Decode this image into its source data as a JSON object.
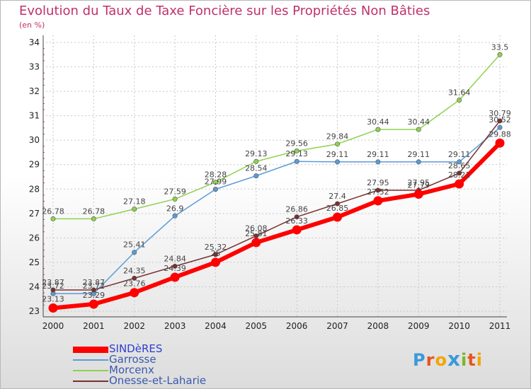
{
  "title": "Evolution du Taux de Taxe Foncière sur les Propriétés Non Bâties",
  "unit_label": "(en %)",
  "logo": {
    "text": "Proxiti",
    "colors": [
      "#3a9ad9",
      "#e8541e",
      "#f2a600",
      "#3a9ad9",
      "#7ab829",
      "#e8541e",
      "#f2a600"
    ]
  },
  "chart_data": {
    "type": "line",
    "categories": [
      "2000",
      "2001",
      "2002",
      "2003",
      "2004",
      "2005",
      "2006",
      "2007",
      "2008",
      "2009",
      "2010",
      "2011"
    ],
    "ylim": [
      23,
      34
    ],
    "yticks": [
      "23",
      "24",
      "25",
      "26",
      "27",
      "28",
      "29",
      "30",
      "31",
      "32",
      "33",
      "34"
    ],
    "grid": true,
    "series": [
      {
        "name": "SINDèRES",
        "color": "#ff0000",
        "values": [
          23.13,
          23.29,
          23.76,
          24.39,
          25.0,
          25.81,
          26.33,
          26.85,
          27.52,
          27.79,
          28.21,
          29.88
        ],
        "labels": [
          "23.13",
          "23.29",
          "23.76",
          "24.39",
          "25",
          "25.81",
          "26.33",
          "26.85",
          "27.52",
          "27.79",
          "28.21",
          "29.88"
        ]
      },
      {
        "name": "Garrosse",
        "color": "#5b9bd5",
        "values": [
          23.72,
          23.72,
          25.41,
          26.9,
          27.99,
          28.54,
          29.13,
          29.11,
          29.11,
          29.11,
          29.11,
          30.52
        ],
        "labels": [
          "23.72",
          "23.72",
          "25.41",
          "26.9",
          "27.99",
          "28.54",
          "29.13",
          "29.11",
          "29.11",
          "29.11",
          "29.11",
          "30.52"
        ]
      },
      {
        "name": "Morcenx",
        "color": "#8fd14f",
        "values": [
          26.78,
          26.78,
          27.18,
          27.59,
          28.28,
          29.13,
          29.56,
          29.84,
          30.44,
          30.44,
          31.64,
          33.5
        ],
        "labels": [
          "26.78",
          "26.78",
          "27.18",
          "27.59",
          "28.28",
          "29.13",
          "29.56",
          "29.84",
          "30.44",
          "30.44",
          "31.64",
          "33.5"
        ]
      },
      {
        "name": "Onesse-et-Laharie",
        "color": "#7a3030",
        "values": [
          23.87,
          23.87,
          24.35,
          24.84,
          25.32,
          26.08,
          26.86,
          27.4,
          27.95,
          27.95,
          28.65,
          30.79
        ],
        "labels": [
          "23.87",
          "23.87",
          "24.35",
          "24.84",
          "25.32",
          "26.08",
          "26.86",
          "27.4",
          "27.95",
          "27.95",
          "28.65",
          "30.79"
        ]
      }
    ]
  }
}
